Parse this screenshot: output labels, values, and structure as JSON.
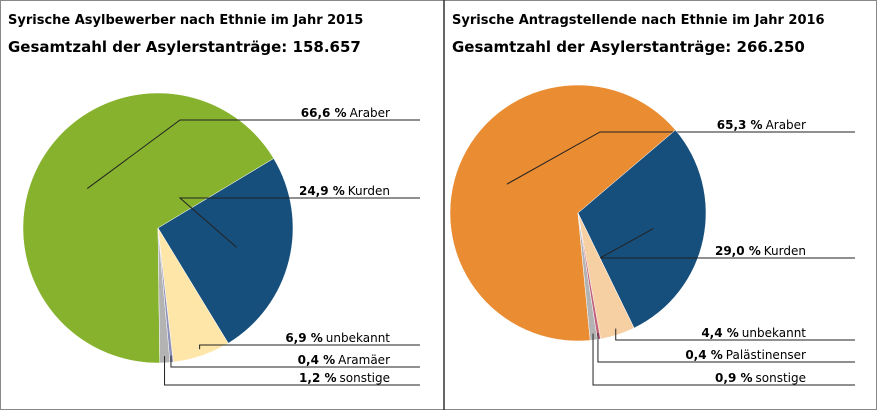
{
  "chart_data": [
    {
      "type": "pie",
      "title": "Syrische Asylbewerber nach Ethnie im Jahr 2015",
      "subtitle": "Gesamtzahl der Asylerstanträge: 158.657",
      "categories": [
        "Araber",
        "Kurden",
        "unbekannt",
        "Aramäer",
        "sonstige"
      ],
      "values": [
        66.6,
        24.9,
        6.9,
        0.4,
        1.2
      ],
      "value_labels": [
        "66,6 %",
        "24,9 %",
        "6,9 %",
        "0,4 %",
        "1,2 %"
      ],
      "colors": [
        "#86b22e",
        "#174f7c",
        "#fde6a8",
        "#8f92b8",
        "#b3b3b3"
      ]
    },
    {
      "type": "pie",
      "title": "Syrische Antragstellende nach Ethnie im Jahr 2016",
      "subtitle": "Gesamtzahl der Asylerstanträge: 266.250",
      "categories": [
        "Araber",
        "Kurden",
        "unbekannt",
        "Palästinenser",
        "sonstige"
      ],
      "values": [
        65.3,
        29.0,
        4.4,
        0.4,
        0.9
      ],
      "value_labels": [
        "65,3 %",
        "29,0 %",
        "4,4 %",
        "0,4 %",
        "0,9 %"
      ],
      "colors": [
        "#e98c32",
        "#174f7c",
        "#f6cfa2",
        "#c0607a",
        "#b3b3b3"
      ]
    }
  ]
}
